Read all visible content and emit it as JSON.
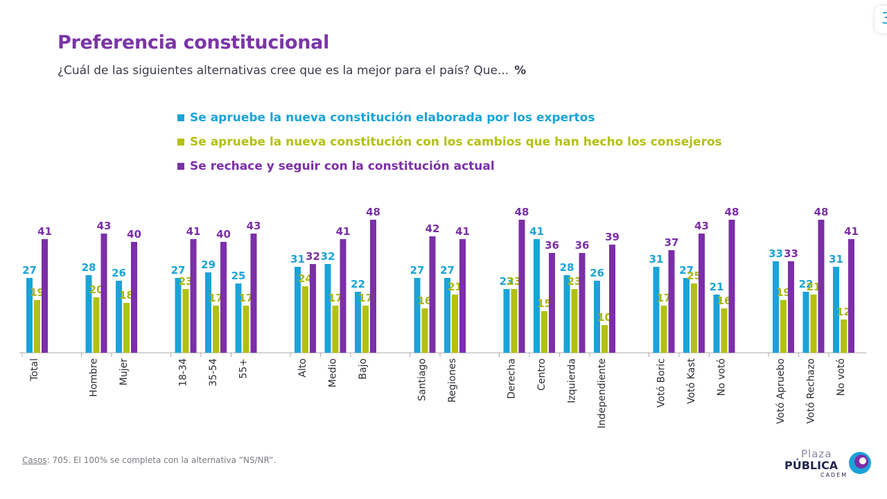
{
  "page": {
    "title": "Preferencia constitucional",
    "subtitle": "¿Cuál de las siguientes alternativas cree que es la mejor para el país? Que...",
    "subtitle_unit": "%",
    "footnote_key": "Casos",
    "footnote_text": ": 705. El 100% se completa con la alternativa “NS/NR”.",
    "page_number": "3",
    "logo": {
      "top": "Plaza",
      "main": "PÚBLICA",
      "sub": "CADEM"
    }
  },
  "chart_data": {
    "type": "bar",
    "categories": [
      "Total",
      "Hombre",
      "Mujer",
      "18-34",
      "35-54",
      "55+",
      "Alto",
      "Medio",
      "Bajo",
      "Santiago",
      "Regiones",
      "Derecha",
      "Centro",
      "Izquierda",
      "Independiente",
      "Votó Boric",
      "Votó Kast",
      "No votó",
      "Votó Apruebo",
      "Votó Rechazo",
      "No votó"
    ],
    "groups": [
      [
        0
      ],
      [
        1,
        2
      ],
      [
        3,
        4,
        5
      ],
      [
        6,
        7,
        8
      ],
      [
        9,
        10
      ],
      [
        11,
        12,
        13,
        14
      ],
      [
        15,
        16,
        17
      ],
      [
        18,
        19,
        20
      ]
    ],
    "series": [
      {
        "name": "Se apruebe la nueva constitución elaborada por los expertos",
        "color": "#1aa3d9",
        "values": [
          27,
          28,
          26,
          27,
          29,
          25,
          31,
          32,
          22,
          27,
          27,
          23,
          41,
          28,
          26,
          31,
          27,
          21,
          33,
          22,
          31
        ]
      },
      {
        "name": "Se apruebe la nueva constitución con los cambios que han hecho los consejeros",
        "color": "#b3c012",
        "values": [
          19,
          20,
          18,
          23,
          17,
          17,
          24,
          17,
          17,
          16,
          21,
          23,
          15,
          23,
          10,
          17,
          25,
          16,
          19,
          21,
          12
        ]
      },
      {
        "name": "Se rechace y seguir con la constitución actual",
        "color": "#7b2fa8",
        "values": [
          41,
          43,
          40,
          41,
          40,
          43,
          32,
          41,
          48,
          42,
          41,
          48,
          36,
          36,
          39,
          37,
          43,
          48,
          33,
          48,
          41
        ]
      }
    ],
    "ylim": [
      0,
      50
    ],
    "legend_position": "top",
    "grid": false,
    "data_labels": true
  }
}
